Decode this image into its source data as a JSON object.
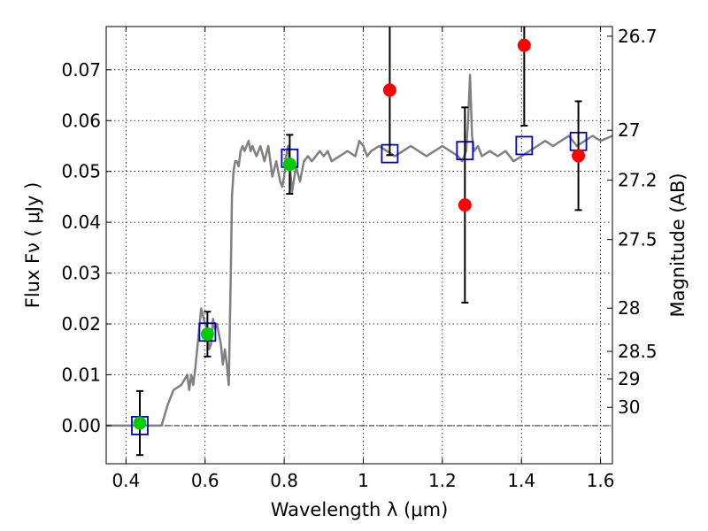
{
  "chart_data": {
    "type": "scatter",
    "xlabel": "Wavelength  λ (μm)",
    "ylabel": "Flux  Fν  ( μJy )",
    "ylabel_right": "Magnitude (AB)",
    "xlim": [
      0.35,
      1.63
    ],
    "ylim": [
      -0.0075,
      0.0785
    ],
    "x_ticks": [
      0.4,
      0.6,
      0.8,
      1.0,
      1.2,
      1.4,
      1.6
    ],
    "x_tick_labels": [
      "0.4",
      "0.6",
      "0.8",
      "1",
      "1.2",
      "1.4",
      "1.6"
    ],
    "y_ticks": [
      0.0,
      0.01,
      0.02,
      0.03,
      0.04,
      0.05,
      0.06,
      0.07
    ],
    "y_tick_labels": [
      "0.00",
      "0.01",
      "0.02",
      "0.03",
      "0.04",
      "0.05",
      "0.06",
      "0.07"
    ],
    "right_ticks": [
      {
        "label": "26.7",
        "flux": 0.0766
      },
      {
        "label": "27",
        "flux": 0.0581
      },
      {
        "label": "27.2",
        "flux": 0.0483
      },
      {
        "label": "27.5",
        "flux": 0.0366
      },
      {
        "label": "28",
        "flux": 0.0231
      },
      {
        "label": "28.5",
        "flux": 0.0146
      },
      {
        "label": "29",
        "flux": 0.0092
      },
      {
        "label": "30",
        "flux": 0.0036
      }
    ],
    "grid": true,
    "zero_line": true,
    "colors": {
      "model": "#808080",
      "green": "#00cc00",
      "red": "#ff0000",
      "square": "#0000cc",
      "errorbar": "#000000"
    },
    "model_spectrum": {
      "x": [
        0.35,
        0.49,
        0.505,
        0.52,
        0.54,
        0.555,
        0.56,
        0.565,
        0.57,
        0.575,
        0.58,
        0.59,
        0.6,
        0.605,
        0.61,
        0.615,
        0.62,
        0.625,
        0.63,
        0.64,
        0.645,
        0.65,
        0.655,
        0.66,
        0.665,
        0.668,
        0.672,
        0.676,
        0.68,
        0.685,
        0.69,
        0.695,
        0.7,
        0.71,
        0.715,
        0.72,
        0.73,
        0.74,
        0.75,
        0.76,
        0.77,
        0.78,
        0.79,
        0.795,
        0.8,
        0.805,
        0.81,
        0.82,
        0.83,
        0.84,
        0.845,
        0.85,
        0.86,
        0.87,
        0.88,
        0.89,
        0.9,
        0.91,
        0.92,
        0.94,
        0.96,
        0.98,
        0.99,
        1.0,
        1.01,
        1.02,
        1.04,
        1.06,
        1.08,
        1.1,
        1.12,
        1.14,
        1.16,
        1.18,
        1.2,
        1.22,
        1.24,
        1.25,
        1.26,
        1.265,
        1.27,
        1.275,
        1.28,
        1.29,
        1.3,
        1.32,
        1.34,
        1.36,
        1.38,
        1.4,
        1.42,
        1.44,
        1.46,
        1.48,
        1.5,
        1.52,
        1.54,
        1.56,
        1.58,
        1.6,
        1.63
      ],
      "y": [
        0.0,
        0.0,
        0.004,
        0.007,
        0.008,
        0.01,
        0.007,
        0.01,
        0.008,
        0.011,
        0.015,
        0.023,
        0.02,
        0.019,
        0.015,
        0.016,
        0.021,
        0.019,
        0.02,
        0.016,
        0.012,
        0.015,
        0.012,
        0.008,
        0.03,
        0.045,
        0.05,
        0.052,
        0.052,
        0.051,
        0.054,
        0.055,
        0.054,
        0.056,
        0.054,
        0.055,
        0.053,
        0.055,
        0.052,
        0.055,
        0.049,
        0.052,
        0.048,
        0.047,
        0.049,
        0.053,
        0.055,
        0.046,
        0.051,
        0.048,
        0.05,
        0.052,
        0.053,
        0.052,
        0.053,
        0.054,
        0.053,
        0.054,
        0.052,
        0.053,
        0.054,
        0.053,
        0.056,
        0.055,
        0.053,
        0.054,
        0.055,
        0.054,
        0.053,
        0.054,
        0.055,
        0.054,
        0.053,
        0.054,
        0.055,
        0.054,
        0.053,
        0.052,
        0.054,
        0.06,
        0.069,
        0.057,
        0.054,
        0.055,
        0.053,
        0.054,
        0.053,
        0.054,
        0.052,
        0.053,
        0.054,
        0.055,
        0.056,
        0.055,
        0.056,
        0.057,
        0.055,
        0.056,
        0.057,
        0.056,
        0.057
      ]
    },
    "series": [
      {
        "marker": "circle",
        "color": "green",
        "points": [
          {
            "x": 0.435,
            "y": 0.0005,
            "err": 0.0063
          },
          {
            "x": 0.606,
            "y": 0.018,
            "err": 0.0044
          },
          {
            "x": 0.814,
            "y": 0.0514,
            "err": 0.0058
          }
        ]
      },
      {
        "marker": "circle",
        "color": "red",
        "points": [
          {
            "x": 1.067,
            "y": 0.066,
            "err": 0.0128
          },
          {
            "x": 1.257,
            "y": 0.0434,
            "err": 0.0192
          },
          {
            "x": 1.407,
            "y": 0.0748,
            "err": 0.0158
          },
          {
            "x": 1.544,
            "y": 0.0531,
            "err": 0.0107
          }
        ]
      },
      {
        "marker": "square",
        "color": "square",
        "points": [
          {
            "x": 0.435,
            "y": 0.0
          },
          {
            "x": 0.606,
            "y": 0.0184
          },
          {
            "x": 0.814,
            "y": 0.0526
          },
          {
            "x": 1.067,
            "y": 0.0535
          },
          {
            "x": 1.257,
            "y": 0.0541
          },
          {
            "x": 1.407,
            "y": 0.0551
          },
          {
            "x": 1.544,
            "y": 0.0559
          }
        ]
      }
    ]
  }
}
